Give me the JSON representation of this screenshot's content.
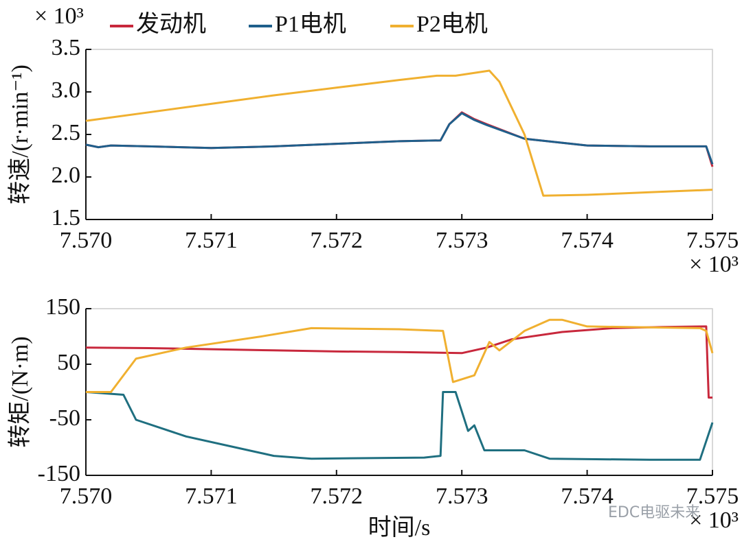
{
  "chart_data": [
    {
      "type": "line",
      "y_multiplier": "× 10³",
      "x_multiplier": "× 10³",
      "ylabel": "转速/(r·min⁻¹)",
      "legend": "top",
      "xlim": [
        7.57,
        7.575
      ],
      "xticks": [
        {
          "value": 7.57,
          "label": "7.570"
        },
        7.571,
        7.572,
        7.573,
        7.574,
        7.575
      ],
      "ylim": [
        1.5,
        3.5
      ],
      "yticks": [
        3.5,
        {
          "value": 3.0,
          "label": "3.0"
        },
        2.5,
        {
          "value": 2.0,
          "label": "2.0"
        },
        1.5
      ],
      "series": [
        {
          "name": "发动机",
          "color": "#c8283c",
          "x": [
            7.57,
            7.5701,
            7.5702,
            7.5705,
            7.571,
            7.5715,
            7.572,
            7.5725,
            7.57283,
            7.5729,
            7.573,
            7.5731,
            7.5732,
            7.5735,
            7.574,
            7.5745,
            7.57495,
            7.575
          ],
          "values": [
            2.38,
            2.35,
            2.37,
            2.36,
            2.34,
            2.36,
            2.39,
            2.42,
            2.43,
            2.62,
            2.76,
            2.68,
            2.62,
            2.45,
            2.37,
            2.36,
            2.36,
            2.12
          ]
        },
        {
          "name": "P1电机",
          "color": "#1f5f8b",
          "x": [
            7.57,
            7.5701,
            7.5702,
            7.5705,
            7.571,
            7.5715,
            7.572,
            7.5725,
            7.57283,
            7.5729,
            7.573,
            7.5731,
            7.5732,
            7.5735,
            7.574,
            7.5745,
            7.57495,
            7.575
          ],
          "values": [
            2.38,
            2.35,
            2.37,
            2.36,
            2.34,
            2.36,
            2.39,
            2.42,
            2.43,
            2.62,
            2.75,
            2.67,
            2.61,
            2.45,
            2.37,
            2.36,
            2.36,
            2.15
          ]
        },
        {
          "name": "P2电机",
          "color": "#f0b030",
          "x": [
            7.57,
            7.5705,
            7.571,
            7.5715,
            7.572,
            7.5725,
            7.5728,
            7.57295,
            7.57322,
            7.5733,
            7.5735,
            7.57365,
            7.574,
            7.5745,
            7.575
          ],
          "values": [
            2.66,
            2.76,
            2.86,
            2.96,
            3.05,
            3.14,
            3.19,
            3.19,
            3.25,
            3.12,
            2.5,
            1.78,
            1.79,
            1.82,
            1.85
          ]
        }
      ]
    },
    {
      "type": "line",
      "x_multiplier": "× 10³",
      "ylabel": "转矩/(N·m)",
      "xlabel": "时间/s",
      "annotation": "EDC电驱未来",
      "xlim": [
        7.57,
        7.575
      ],
      "xticks": [
        {
          "value": 7.57,
          "label": "7.570"
        },
        7.571,
        7.572,
        7.573,
        7.574,
        7.575
      ],
      "ylim": [
        -150,
        150
      ],
      "yticks": [
        150,
        50,
        -50,
        -150
      ],
      "series": [
        {
          "name": "发动机",
          "color": "#c8283c",
          "x": [
            7.57,
            7.5705,
            7.571,
            7.5715,
            7.572,
            7.5725,
            7.573,
            7.5732,
            7.5734,
            7.5738,
            7.5742,
            7.5746,
            7.57495,
            7.57497,
            7.575
          ],
          "values": [
            80,
            79,
            77,
            75,
            73,
            72,
            70,
            80,
            95,
            108,
            115,
            117,
            118,
            -10,
            -10
          ]
        },
        {
          "name": "P1电机",
          "color": "#1f6f80",
          "x": [
            7.57,
            7.5703,
            7.5704,
            7.5708,
            7.5712,
            7.5715,
            7.5718,
            7.5727,
            7.57283,
            7.57285,
            7.57295,
            7.57305,
            7.5731,
            7.57318,
            7.5735,
            7.5737,
            7.5745,
            7.5749,
            7.575
          ],
          "values": [
            0,
            -5,
            -50,
            -80,
            -100,
            -115,
            -120,
            -118,
            -115,
            0,
            0,
            -70,
            -60,
            -105,
            -105,
            -120,
            -122,
            -122,
            -55
          ]
        },
        {
          "name": "P2电机",
          "color": "#f0b030",
          "x": [
            7.57,
            7.5702,
            7.5704,
            7.5708,
            7.5714,
            7.5718,
            7.5725,
            7.57285,
            7.57293,
            7.5731,
            7.57322,
            7.5733,
            7.5735,
            7.5737,
            7.5738,
            7.574,
            7.5749,
            7.57495,
            7.575
          ],
          "values": [
            0,
            0,
            60,
            80,
            100,
            115,
            113,
            110,
            18,
            30,
            90,
            75,
            110,
            130,
            130,
            118,
            115,
            110,
            70
          ]
        }
      ]
    }
  ]
}
